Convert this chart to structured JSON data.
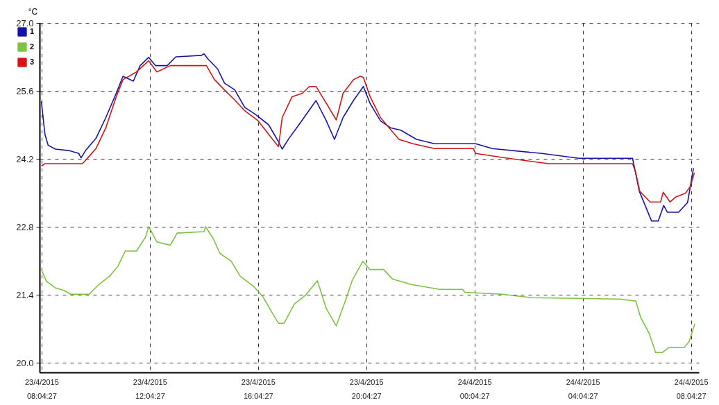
{
  "chart_data": {
    "type": "line",
    "ylabel": "°C",
    "xlim": [
      "2015-04-23T08:00",
      "2015-04-24T08:22"
    ],
    "ylim": [
      19.8,
      27.0
    ],
    "xticks": [
      {
        "value": "2015-04-23T08:04:27",
        "label": "23/4/2015\n08:04:27"
      },
      {
        "value": "2015-04-23T12:04:27",
        "label": "23/4/2015\n12:04:27"
      },
      {
        "value": "2015-04-23T16:04:27",
        "label": "23/4/2015\n16:04:27"
      },
      {
        "value": "2015-04-23T20:04:27",
        "label": "23/4/2015\n20:04:27"
      },
      {
        "value": "2015-04-24T00:04:27",
        "label": "24/4/2015\n00:04:27"
      },
      {
        "value": "2015-04-24T04:04:27",
        "label": "24/4/2015\n04:04:27"
      },
      {
        "value": "2015-04-24T08:04:27",
        "label": "24/4/2015\n08:04:27"
      }
    ],
    "yticks": [
      {
        "value": 20.0,
        "label": "20.0"
      },
      {
        "value": 21.4,
        "label": "21.4"
      },
      {
        "value": 22.8,
        "label": "22.8"
      },
      {
        "value": 24.2,
        "label": "24.2"
      },
      {
        "value": 25.6,
        "label": "25.6"
      },
      {
        "value": 27.0,
        "label": "27.0"
      }
    ],
    "grid": true,
    "legend": "top left",
    "series": [
      {
        "name": "1",
        "color": "#1414aa",
        "x": [
          "2015-04-23T08:04",
          "2015-04-23T08:12",
          "2015-04-23T08:19",
          "2015-04-23T08:35",
          "2015-04-23T09:05",
          "2015-04-23T09:27",
          "2015-04-23T09:32",
          "2015-04-23T09:42",
          "2015-04-23T10:05",
          "2015-04-23T10:27",
          "2015-04-23T10:50",
          "2015-04-23T11:05",
          "2015-04-23T11:28",
          "2015-04-23T11:43",
          "2015-04-23T12:02",
          "2015-04-23T12:17",
          "2015-04-23T12:43",
          "2015-04-23T13:02",
          "2015-04-23T13:58",
          "2015-04-23T14:05",
          "2015-04-23T14:13",
          "2015-04-23T14:35",
          "2015-04-23T14:50",
          "2015-04-23T15:13",
          "2015-04-23T15:35",
          "2015-04-23T15:58",
          "2015-04-23T16:28",
          "2015-04-23T16:50",
          "2015-04-23T16:58",
          "2015-04-23T17:13",
          "2015-04-23T17:35",
          "2015-04-23T18:13",
          "2015-04-23T18:36",
          "2015-04-23T18:54",
          "2015-04-23T19:13",
          "2015-04-23T19:36",
          "2015-04-23T19:58",
          "2015-04-23T20:13",
          "2015-04-23T20:36",
          "2015-04-23T20:58",
          "2015-04-23T21:21",
          "2015-04-23T21:56",
          "2015-04-23T22:36",
          "2015-04-24T00:07",
          "2015-04-24T00:44",
          "2015-04-24T02:34",
          "2015-04-24T03:56",
          "2015-04-24T05:55",
          "2015-04-24T06:10",
          "2015-04-24T06:37",
          "2015-04-24T06:52",
          "2015-04-24T07:04",
          "2015-04-24T07:12",
          "2015-04-24T07:37",
          "2015-04-24T07:57",
          "2015-04-24T08:10"
        ],
        "values": [
          25.38,
          24.7,
          24.48,
          24.4,
          24.37,
          24.31,
          24.22,
          24.37,
          24.62,
          25.05,
          25.55,
          25.9,
          25.8,
          26.12,
          26.29,
          26.12,
          26.12,
          26.3,
          26.33,
          26.36,
          26.26,
          26.05,
          25.76,
          25.62,
          25.26,
          25.12,
          24.9,
          24.55,
          24.4,
          24.62,
          24.9,
          25.4,
          24.98,
          24.6,
          25.05,
          25.4,
          25.69,
          25.34,
          24.98,
          24.84,
          24.79,
          24.6,
          24.51,
          24.51,
          24.41,
          24.31,
          24.21,
          24.21,
          23.53,
          22.92,
          22.92,
          23.24,
          23.1,
          23.1,
          23.3,
          24.01
        ]
      },
      {
        "name": "2",
        "color": "#7dc242",
        "x": [
          "2015-04-23T08:04",
          "2015-04-23T08:15",
          "2015-04-23T08:35",
          "2015-04-23T08:54",
          "2015-04-23T09:09",
          "2015-04-23T09:50",
          "2015-04-23T10:09",
          "2015-04-23T10:35",
          "2015-04-23T10:54",
          "2015-04-23T11:10",
          "2015-04-23T11:35",
          "2015-04-23T11:55",
          "2015-04-23T12:02",
          "2015-04-23T12:20",
          "2015-04-23T12:50",
          "2015-04-23T13:05",
          "2015-04-23T14:05",
          "2015-04-23T14:08",
          "2015-04-23T14:25",
          "2015-04-23T14:40",
          "2015-04-23T15:05",
          "2015-04-23T15:25",
          "2015-04-23T15:55",
          "2015-04-23T16:16",
          "2015-04-23T16:35",
          "2015-04-23T16:50",
          "2015-04-23T17:02",
          "2015-04-23T17:25",
          "2015-04-23T17:50",
          "2015-04-23T18:16",
          "2015-04-23T18:36",
          "2015-04-23T18:58",
          "2015-04-23T19:21",
          "2015-04-23T19:33",
          "2015-04-23T19:57",
          "2015-04-23T20:12",
          "2015-04-23T20:43",
          "2015-04-23T21:03",
          "2015-04-23T21:45",
          "2015-04-23T22:47",
          "2015-04-23T23:38",
          "2015-04-23T23:43",
          "2015-04-24T01:05",
          "2015-04-24T02:11",
          "2015-04-24T05:26",
          "2015-04-24T06:02",
          "2015-04-24T06:13",
          "2015-04-24T06:32",
          "2015-04-24T06:46",
          "2015-04-24T07:01",
          "2015-04-24T07:15",
          "2015-04-24T07:49",
          "2015-04-24T08:00",
          "2015-04-24T08:13"
        ],
        "values": [
          21.92,
          21.68,
          21.54,
          21.49,
          21.41,
          21.41,
          21.59,
          21.78,
          21.99,
          22.3,
          22.3,
          22.59,
          22.8,
          22.49,
          22.42,
          22.67,
          22.7,
          22.8,
          22.56,
          22.25,
          22.09,
          21.78,
          21.57,
          21.35,
          21.04,
          20.81,
          20.81,
          21.21,
          21.39,
          21.69,
          21.11,
          20.76,
          21.35,
          21.69,
          22.09,
          21.92,
          21.92,
          21.72,
          21.61,
          21.51,
          21.51,
          21.45,
          21.41,
          21.34,
          21.31,
          21.27,
          20.93,
          20.6,
          20.21,
          20.21,
          20.31,
          20.31,
          20.43,
          20.8
        ]
      },
      {
        "name": "3",
        "color": "#d41414",
        "x": [
          "2015-04-23T08:04",
          "2015-04-23T08:12",
          "2015-04-23T09:35",
          "2015-04-23T09:47",
          "2015-04-23T10:05",
          "2015-04-23T10:27",
          "2015-04-23T10:50",
          "2015-04-23T11:05",
          "2015-04-23T11:35",
          "2015-04-23T11:50",
          "2015-04-23T12:02",
          "2015-04-23T12:20",
          "2015-04-23T12:50",
          "2015-04-23T14:10",
          "2015-04-23T14:28",
          "2015-04-23T14:50",
          "2015-04-23T15:13",
          "2015-04-23T15:35",
          "2015-04-23T16:05",
          "2015-04-23T16:35",
          "2015-04-23T16:50",
          "2015-04-23T16:58",
          "2015-04-23T17:20",
          "2015-04-23T17:43",
          "2015-04-23T17:58",
          "2015-04-23T18:13",
          "2015-04-23T18:36",
          "2015-04-23T18:58",
          "2015-04-23T19:13",
          "2015-04-23T19:36",
          "2015-04-23T19:51",
          "2015-04-23T19:58",
          "2015-04-23T20:13",
          "2015-04-23T20:36",
          "2015-04-23T20:55",
          "2015-04-23T21:17",
          "2015-04-23T21:48",
          "2015-04-23T22:36",
          "2015-04-24T00:02",
          "2015-04-24T00:07",
          "2015-04-24T01:19",
          "2015-04-24T02:49",
          "2015-04-24T05:55",
          "2015-04-24T06:02",
          "2015-04-24T06:11",
          "2015-04-24T06:34",
          "2015-04-24T06:57",
          "2015-04-24T07:03",
          "2015-04-24T07:18",
          "2015-04-24T07:30",
          "2015-04-24T07:52",
          "2015-04-24T08:03",
          "2015-04-24T08:12"
        ],
        "values": [
          24.05,
          24.1,
          24.1,
          24.22,
          24.41,
          24.84,
          25.48,
          25.83,
          25.99,
          26.12,
          26.22,
          25.99,
          26.12,
          26.12,
          25.83,
          25.62,
          25.41,
          25.19,
          24.98,
          24.62,
          24.45,
          25.05,
          25.48,
          25.55,
          25.69,
          25.69,
          25.34,
          25.0,
          25.55,
          25.83,
          25.9,
          25.88,
          25.48,
          25.05,
          24.84,
          24.6,
          24.51,
          24.41,
          24.41,
          24.31,
          24.21,
          24.1,
          24.1,
          23.91,
          23.53,
          23.31,
          23.31,
          23.51,
          23.31,
          23.41,
          23.49,
          23.63,
          23.91
        ]
      }
    ]
  }
}
